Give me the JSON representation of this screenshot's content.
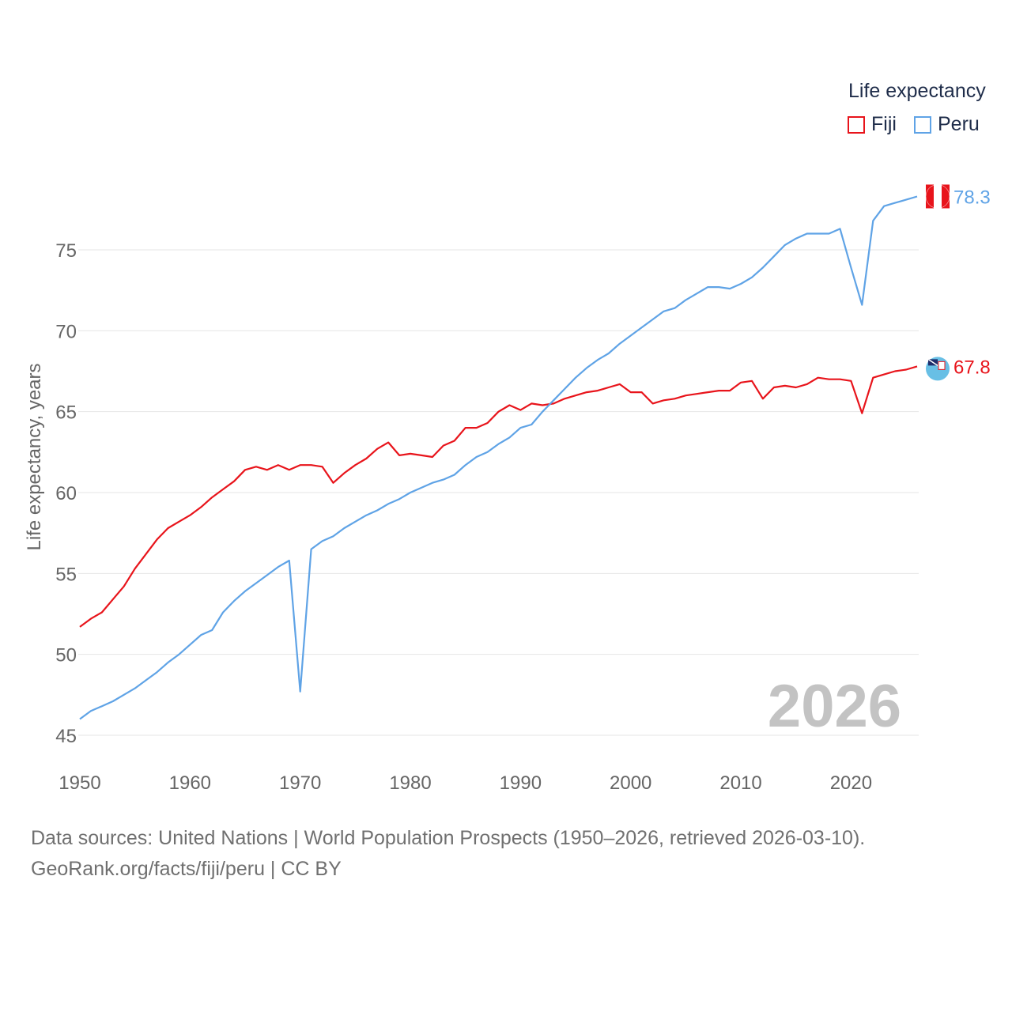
{
  "legend": {
    "title": "Life expectancy",
    "items": [
      {
        "label": "Fiji",
        "color": "#e8141b"
      },
      {
        "label": "Peru",
        "color": "#5fa3e6"
      }
    ]
  },
  "current_year": "2026",
  "footer": {
    "line1": "Data sources: United Nations | World Population Prospects (1950–2026, retrieved 2026-03-10).",
    "line2": "GeoRank.org/facts/fiji/peru | CC BY"
  },
  "chart_data": {
    "type": "line",
    "title": "",
    "xlabel": "",
    "ylabel": "Life expectancy, years",
    "xlim": [
      1950,
      2026
    ],
    "ylim": [
      45,
      79
    ],
    "xticks": [
      1950,
      1960,
      1970,
      1980,
      1990,
      2000,
      2010,
      2020
    ],
    "yticks": [
      45,
      50,
      55,
      60,
      65,
      70,
      75
    ],
    "grid": true,
    "x": [
      1950,
      1951,
      1952,
      1953,
      1954,
      1955,
      1956,
      1957,
      1958,
      1959,
      1960,
      1961,
      1962,
      1963,
      1964,
      1965,
      1966,
      1967,
      1968,
      1969,
      1970,
      1971,
      1972,
      1973,
      1974,
      1975,
      1976,
      1977,
      1978,
      1979,
      1980,
      1981,
      1982,
      1983,
      1984,
      1985,
      1986,
      1987,
      1988,
      1989,
      1990,
      1991,
      1992,
      1993,
      1994,
      1995,
      1996,
      1997,
      1998,
      1999,
      2000,
      2001,
      2002,
      2003,
      2004,
      2005,
      2006,
      2007,
      2008,
      2009,
      2010,
      2011,
      2012,
      2013,
      2014,
      2015,
      2016,
      2017,
      2018,
      2019,
      2020,
      2021,
      2022,
      2023,
      2024,
      2025,
      2026
    ],
    "series": [
      {
        "name": "Fiji",
        "color": "#e8141b",
        "end_label": "67.8",
        "values": [
          51.7,
          52.2,
          52.6,
          53.4,
          54.2,
          55.3,
          56.2,
          57.1,
          57.8,
          58.2,
          58.6,
          59.1,
          59.7,
          60.2,
          60.7,
          61.4,
          61.6,
          61.4,
          61.7,
          61.4,
          61.7,
          61.7,
          61.6,
          60.6,
          61.2,
          61.7,
          62.1,
          62.7,
          63.1,
          62.3,
          62.4,
          62.3,
          62.2,
          62.9,
          63.2,
          64.0,
          64.0,
          64.3,
          65.0,
          65.4,
          65.1,
          65.5,
          65.4,
          65.5,
          65.8,
          66.0,
          66.2,
          66.3,
          66.5,
          66.7,
          66.2,
          66.2,
          65.5,
          65.7,
          65.8,
          66.0,
          66.1,
          66.2,
          66.3,
          66.3,
          66.8,
          66.9,
          65.8,
          66.5,
          66.6,
          66.5,
          66.7,
          67.1,
          67.0,
          67.0,
          66.9,
          64.9,
          67.1,
          67.3,
          67.5,
          67.6,
          67.8
        ]
      },
      {
        "name": "Peru",
        "color": "#5fa3e6",
        "end_label": "78.3",
        "values": [
          46.0,
          46.5,
          46.8,
          47.1,
          47.5,
          47.9,
          48.4,
          48.9,
          49.5,
          50.0,
          50.6,
          51.2,
          51.5,
          52.6,
          53.3,
          53.9,
          54.4,
          54.9,
          55.4,
          55.8,
          47.7,
          56.5,
          57.0,
          57.3,
          57.8,
          58.2,
          58.6,
          58.9,
          59.3,
          59.6,
          60.0,
          60.3,
          60.6,
          60.8,
          61.1,
          61.7,
          62.2,
          62.5,
          63.0,
          63.4,
          64.0,
          64.2,
          65.0,
          65.7,
          66.4,
          67.1,
          67.7,
          68.2,
          68.6,
          69.2,
          69.7,
          70.2,
          70.7,
          71.2,
          71.4,
          71.9,
          72.3,
          72.7,
          72.7,
          72.6,
          72.9,
          73.3,
          73.9,
          74.6,
          75.3,
          75.7,
          76.0,
          76.0,
          76.0,
          76.3,
          73.9,
          71.6,
          76.8,
          77.7,
          77.9,
          78.1,
          78.3
        ]
      }
    ]
  }
}
